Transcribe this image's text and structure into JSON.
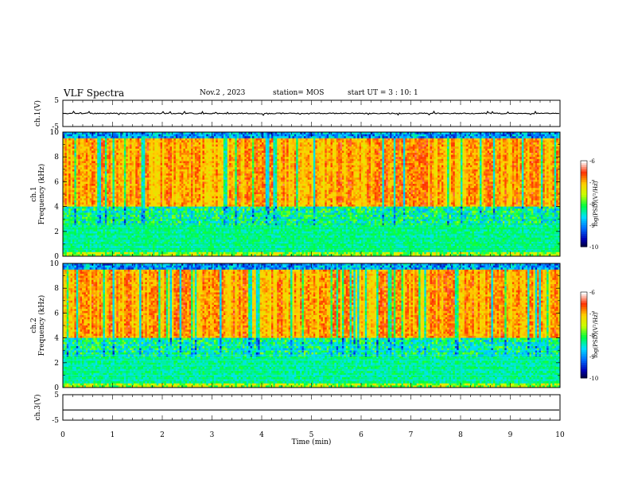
{
  "header": {
    "title": "VLF Spectra",
    "date": "Nov.2 , 2023",
    "station": "station= MOS",
    "start": "start UT = 3 : 10: 1"
  },
  "chart_data": [
    {
      "type": "line",
      "name": "ch1-waveform",
      "ylabel": "ch.1(V)",
      "ylim": [
        -5,
        5
      ],
      "yticks": [
        "5",
        "-5"
      ],
      "xlim": [
        0,
        10
      ],
      "baseline": 0,
      "grid": false
    },
    {
      "type": "heatmap",
      "name": "ch1-spectrogram",
      "ylabel": "ch.1\nFrequency (kHz)",
      "ylim": [
        0,
        10
      ],
      "yticks": [
        "0",
        "2",
        "4",
        "6",
        "8",
        "10"
      ],
      "xlim": [
        0,
        10
      ],
      "colorbar": {
        "label": "log(PSD)(V²/Hz)",
        "range": [
          -10,
          -6
        ],
        "ticks": [
          "-6",
          "-7",
          "-8",
          "-9",
          "-10"
        ]
      }
    },
    {
      "type": "heatmap",
      "name": "ch2-spectrogram",
      "ylabel": "ch.2\nFrequency (kHz)",
      "ylim": [
        0,
        10
      ],
      "yticks": [
        "0",
        "2",
        "4",
        "6",
        "8",
        "10"
      ],
      "xlim": [
        0,
        10
      ],
      "colorbar": {
        "label": "log(PSD)(V²/Hz)",
        "range": [
          -10,
          -6
        ],
        "ticks": [
          "-6",
          "-7",
          "-8",
          "-9",
          "-10"
        ]
      }
    },
    {
      "type": "line",
      "name": "ch3-waveform",
      "ylabel": "ch.3(V)",
      "ylim": [
        -5,
        5
      ],
      "yticks": [
        "5",
        "-5"
      ],
      "xlim": [
        0,
        10
      ],
      "baseline": -1,
      "grid": false
    }
  ],
  "xaxis": {
    "label": "Time (min)",
    "ticks": [
      "0",
      "1",
      "2",
      "3",
      "4",
      "5",
      "6",
      "7",
      "8",
      "9",
      "10"
    ]
  },
  "colors": {
    "ink": "#000000",
    "spec_bg": "#0a1a8c",
    "colormap": [
      "#000000",
      "#0000b4",
      "#0070ff",
      "#00e0ff",
      "#00ff40",
      "#c8ff00",
      "#ffd000",
      "#ff3000",
      "#ffffff"
    ]
  }
}
